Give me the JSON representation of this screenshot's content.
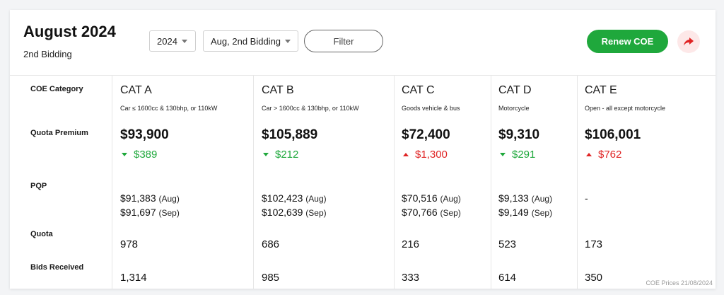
{
  "header": {
    "title": "August 2024",
    "subtitle": "2nd Bidding",
    "year_select": "2024",
    "bidding_select": "Aug, 2nd Bidding",
    "filter_label": "Filter",
    "renew_label": "Renew COE",
    "share_icon": "share-arrow-icon"
  },
  "row_labels": {
    "category": "COE Category",
    "premium": "Quota Premium",
    "pqp": "PQP",
    "quota": "Quota",
    "bids": "Bids Received"
  },
  "categories": [
    {
      "name": "CAT A",
      "desc": "Car ≤ 1600cc & 130bhp, or 110kW",
      "premium": "$93,900",
      "change": "$389",
      "direction": "down",
      "pqp1": "$91,383",
      "pqp1_month": "(Aug)",
      "pqp2": "$91,697",
      "pqp2_month": "(Sep)",
      "quota": "978",
      "bids": "1,314"
    },
    {
      "name": "CAT B",
      "desc": "Car > 1600cc & 130bhp, or 110kW",
      "premium": "$105,889",
      "change": "$212",
      "direction": "down",
      "pqp1": "$102,423",
      "pqp1_month": "(Aug)",
      "pqp2": "$102,639",
      "pqp2_month": "(Sep)",
      "quota": "686",
      "bids": "985"
    },
    {
      "name": "CAT C",
      "desc": "Goods vehicle & bus",
      "premium": "$72,400",
      "change": "$1,300",
      "direction": "up",
      "pqp1": "$70,516",
      "pqp1_month": "(Aug)",
      "pqp2": "$70,766",
      "pqp2_month": "(Sep)",
      "quota": "216",
      "bids": "333"
    },
    {
      "name": "CAT D",
      "desc": "Motorcycle",
      "premium": "$9,310",
      "change": "$291",
      "direction": "down",
      "pqp1": "$9,133",
      "pqp1_month": "(Aug)",
      "pqp2": "$9,149",
      "pqp2_month": "(Sep)",
      "quota": "523",
      "bids": "614"
    },
    {
      "name": "CAT E",
      "desc": "Open - all except motorcycle",
      "premium": "$106,001",
      "change": "$762",
      "direction": "up",
      "pqp1": "-",
      "pqp1_month": "",
      "pqp2": "",
      "pqp2_month": "",
      "quota": "173",
      "bids": "350"
    }
  ],
  "colors": {
    "accent_green": "#1fa83c",
    "accent_red": "#e02424"
  },
  "footnote": "COE Prices 21/08/2024"
}
